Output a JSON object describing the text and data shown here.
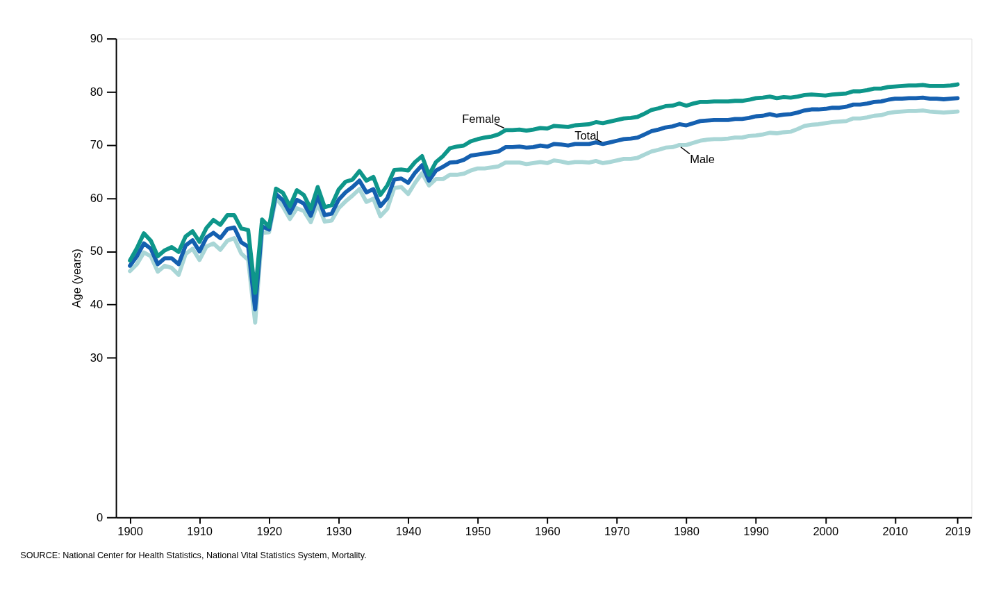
{
  "chart_data": {
    "type": "line",
    "ylabel": "Age (years)",
    "x": [
      1900,
      1901,
      1902,
      1903,
      1904,
      1905,
      1906,
      1907,
      1908,
      1909,
      1910,
      1911,
      1912,
      1913,
      1914,
      1915,
      1916,
      1917,
      1918,
      1919,
      1920,
      1921,
      1922,
      1923,
      1924,
      1925,
      1926,
      1927,
      1928,
      1929,
      1930,
      1931,
      1932,
      1933,
      1934,
      1935,
      1936,
      1937,
      1938,
      1939,
      1940,
      1941,
      1942,
      1943,
      1944,
      1945,
      1946,
      1947,
      1948,
      1949,
      1950,
      1951,
      1952,
      1953,
      1954,
      1955,
      1956,
      1957,
      1958,
      1959,
      1960,
      1961,
      1962,
      1963,
      1964,
      1965,
      1966,
      1967,
      1968,
      1969,
      1970,
      1971,
      1972,
      1973,
      1974,
      1975,
      1976,
      1977,
      1978,
      1979,
      1980,
      1981,
      1982,
      1983,
      1984,
      1985,
      1986,
      1987,
      1988,
      1989,
      1990,
      1991,
      1992,
      1993,
      1994,
      1995,
      1996,
      1997,
      1998,
      1999,
      2000,
      2001,
      2002,
      2003,
      2004,
      2005,
      2006,
      2007,
      2008,
      2009,
      2010,
      2011,
      2012,
      2013,
      2014,
      2015,
      2016,
      2017,
      2018,
      2019
    ],
    "series": [
      {
        "name": "Male",
        "color": "#a9d6d6",
        "values": [
          46.3,
          47.6,
          49.8,
          49.1,
          46.2,
          47.3,
          46.9,
          45.6,
          49.5,
          50.5,
          48.4,
          50.9,
          51.5,
          50.3,
          52.0,
          52.5,
          49.6,
          48.4,
          36.6,
          53.5,
          53.6,
          60.0,
          58.4,
          56.1,
          58.1,
          57.6,
          55.5,
          59.0,
          55.6,
          55.8,
          58.1,
          59.4,
          60.5,
          61.7,
          59.3,
          59.9,
          56.6,
          58.0,
          61.9,
          62.1,
          60.8,
          62.9,
          64.7,
          62.4,
          63.6,
          63.6,
          64.4,
          64.4,
          64.6,
          65.2,
          65.6,
          65.6,
          65.8,
          66.0,
          66.7,
          66.7,
          66.7,
          66.4,
          66.6,
          66.8,
          66.6,
          67.1,
          66.9,
          66.6,
          66.8,
          66.8,
          66.7,
          67.0,
          66.6,
          66.8,
          67.1,
          67.4,
          67.4,
          67.6,
          68.2,
          68.8,
          69.1,
          69.5,
          69.6,
          70.0,
          70.0,
          70.4,
          70.8,
          71.0,
          71.1,
          71.1,
          71.2,
          71.4,
          71.4,
          71.7,
          71.8,
          72.0,
          72.3,
          72.2,
          72.4,
          72.5,
          73.0,
          73.6,
          73.8,
          73.9,
          74.1,
          74.3,
          74.4,
          74.5,
          75.0,
          75.0,
          75.2,
          75.5,
          75.6,
          76.0,
          76.2,
          76.3,
          76.4,
          76.4,
          76.5,
          76.3,
          76.2,
          76.1,
          76.2,
          76.3
        ]
      },
      {
        "name": "Total",
        "color": "#1560b0",
        "values": [
          47.3,
          49.1,
          51.5,
          50.5,
          47.6,
          48.7,
          48.7,
          47.6,
          51.1,
          52.1,
          50.0,
          52.6,
          53.5,
          52.5,
          54.2,
          54.5,
          51.7,
          50.9,
          39.1,
          54.7,
          54.1,
          60.8,
          59.6,
          57.2,
          59.7,
          59.0,
          56.7,
          60.4,
          56.8,
          57.1,
          59.7,
          61.1,
          62.1,
          63.3,
          61.1,
          61.7,
          58.5,
          60.0,
          63.5,
          63.7,
          62.9,
          64.8,
          66.2,
          63.3,
          65.2,
          65.9,
          66.7,
          66.8,
          67.2,
          68.0,
          68.2,
          68.4,
          68.6,
          68.8,
          69.6,
          69.6,
          69.7,
          69.5,
          69.6,
          69.9,
          69.7,
          70.2,
          70.1,
          69.9,
          70.2,
          70.2,
          70.2,
          70.5,
          70.2,
          70.5,
          70.8,
          71.1,
          71.2,
          71.4,
          72.0,
          72.6,
          72.9,
          73.3,
          73.5,
          73.9,
          73.7,
          74.1,
          74.5,
          74.6,
          74.7,
          74.7,
          74.7,
          74.9,
          74.9,
          75.1,
          75.4,
          75.5,
          75.8,
          75.5,
          75.7,
          75.8,
          76.1,
          76.5,
          76.7,
          76.7,
          76.8,
          77.0,
          77.0,
          77.2,
          77.6,
          77.6,
          77.8,
          78.1,
          78.2,
          78.5,
          78.7,
          78.7,
          78.8,
          78.8,
          78.9,
          78.7,
          78.7,
          78.6,
          78.7,
          78.8
        ]
      },
      {
        "name": "Female",
        "color": "#0e968a",
        "values": [
          48.3,
          50.6,
          53.4,
          52.0,
          49.1,
          50.2,
          50.8,
          49.9,
          52.8,
          53.8,
          51.8,
          54.4,
          55.9,
          55.0,
          56.8,
          56.8,
          54.3,
          54.0,
          42.2,
          56.0,
          54.6,
          61.8,
          61.0,
          58.5,
          61.5,
          60.6,
          58.0,
          62.1,
          58.3,
          58.7,
          61.6,
          63.1,
          63.5,
          65.1,
          63.3,
          64.0,
          60.6,
          62.4,
          65.3,
          65.4,
          65.2,
          66.8,
          67.9,
          64.4,
          66.8,
          67.9,
          69.4,
          69.7,
          69.9,
          70.7,
          71.1,
          71.4,
          71.6,
          72.0,
          72.8,
          72.8,
          72.9,
          72.7,
          72.9,
          73.2,
          73.1,
          73.6,
          73.5,
          73.4,
          73.7,
          73.8,
          73.9,
          74.3,
          74.1,
          74.4,
          74.7,
          75.0,
          75.1,
          75.3,
          75.9,
          76.6,
          76.9,
          77.3,
          77.4,
          77.8,
          77.4,
          77.8,
          78.1,
          78.1,
          78.2,
          78.2,
          78.2,
          78.3,
          78.3,
          78.5,
          78.8,
          78.9,
          79.1,
          78.8,
          79.0,
          78.9,
          79.1,
          79.4,
          79.5,
          79.4,
          79.3,
          79.5,
          79.6,
          79.7,
          80.1,
          80.1,
          80.3,
          80.6,
          80.6,
          80.9,
          81.0,
          81.1,
          81.2,
          81.2,
          81.3,
          81.1,
          81.1,
          81.1,
          81.2,
          81.4
        ]
      }
    ],
    "xlim": [
      1898,
      2021
    ],
    "xticks": [
      1900,
      1910,
      1920,
      1930,
      1940,
      1950,
      1960,
      1970,
      1980,
      1990,
      2000,
      2010,
      2019
    ],
    "ylim": [
      0,
      90
    ],
    "yticks": [
      0,
      30,
      40,
      50,
      60,
      70,
      80,
      90
    ],
    "grid": false,
    "legend": false,
    "marker": "none",
    "line_style": "solid",
    "annotations": [
      "SOURCE: National Center for Health Statistics, National Vital Statistics System, Mortality."
    ]
  }
}
